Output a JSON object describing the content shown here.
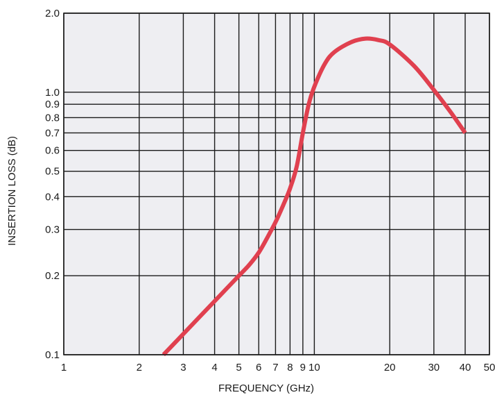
{
  "chart_data": {
    "type": "line",
    "title": "",
    "xlabel": "FREQUENCY (GHz)",
    "ylabel": "INSERTION LOSS (dB)",
    "xscale": "log",
    "yscale": "log",
    "xlim": [
      1,
      50
    ],
    "ylim": [
      0.1,
      2.0
    ],
    "grid": true,
    "legend": "none",
    "x_ticks": [
      1,
      2,
      3,
      4,
      5,
      6,
      7,
      8,
      9,
      10,
      20,
      30,
      40,
      50
    ],
    "x_tick_labels": [
      "1",
      "2",
      "3",
      "4",
      "5",
      "6",
      "7",
      "8",
      "9",
      "10",
      "20",
      "30",
      "40",
      "50"
    ],
    "y_ticks": [
      0.1,
      0.2,
      0.3,
      0.4,
      0.5,
      0.6,
      0.7,
      0.8,
      0.9,
      1.0,
      2.0
    ],
    "y_tick_labels": [
      "0.1",
      "0.2",
      "0.3",
      "0.4",
      "0.5",
      "0.6",
      "0.7",
      "0.8",
      "0.9",
      "1.0",
      "2.0"
    ],
    "series": [
      {
        "x": [
          2.5,
          3.0,
          3.5,
          4.0,
          4.5,
          5.0,
          5.5,
          6.0,
          6.5,
          7.0,
          7.5,
          8.0,
          8.5,
          9.0,
          9.5,
          10.0,
          11.0,
          12.0,
          14.0,
          16.0,
          18.0,
          20.0,
          25.0,
          30.0,
          35.0,
          40.0
        ],
        "y": [
          0.1,
          0.12,
          0.14,
          0.16,
          0.18,
          0.2,
          0.22,
          0.245,
          0.28,
          0.32,
          0.37,
          0.43,
          0.52,
          0.7,
          0.9,
          1.05,
          1.28,
          1.42,
          1.55,
          1.6,
          1.58,
          1.52,
          1.26,
          1.02,
          0.84,
          0.7
        ]
      }
    ],
    "colors": {
      "plot_background": "#eeeef2",
      "curve": "#e0404f",
      "grid": "#1a1a1a"
    }
  }
}
